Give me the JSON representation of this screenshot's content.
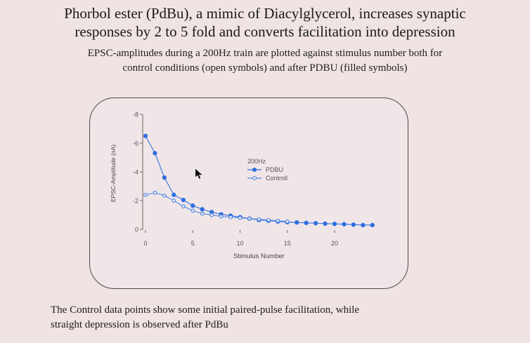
{
  "slide": {
    "title_line1": "Phorbol ester (PdBu), a mimic of Diacylglycerol, increases synaptic",
    "title_line2": "responses by 2 to 5 fold and converts facilitation into depression",
    "subtitle_line1": "EPSC-amplitudes during a 200Hz train are plotted against stimulus number both for",
    "subtitle_line2": "control conditions (open symbols) and after PDBU (filled symbols)",
    "caption_line1": "The Control data points show some initial paired-pulse facilitation, while",
    "caption_line2": "straight depression is observed after PdBu"
  },
  "chart_data": {
    "type": "scatter",
    "xlabel": "Stimulus Number",
    "ylabel": "EPSC-Amplitude (nA)",
    "xlim": [
      -1,
      24.5
    ],
    "ylim": [
      0,
      8
    ],
    "x_ticks": [
      0,
      5,
      10,
      15,
      20
    ],
    "y_ticks": [
      0,
      2,
      4,
      6,
      8
    ],
    "y_tick_labels": [
      "0",
      "-2",
      "-4",
      "-6",
      "-8"
    ],
    "legend_title": "200Hz",
    "legend_position": "upper-middle",
    "grid": false,
    "series": [
      {
        "name": "PDBU",
        "marker": "filled-circle",
        "color": "#2f6fe0",
        "x": [
          0,
          1,
          2,
          3,
          4,
          5,
          6,
          7,
          8,
          9,
          10,
          11,
          12,
          13,
          14,
          15,
          16,
          17,
          18,
          19,
          20,
          21,
          22,
          23,
          24
        ],
        "y": [
          6.5,
          5.3,
          3.6,
          2.4,
          2.05,
          1.65,
          1.4,
          1.2,
          1.05,
          0.95,
          0.85,
          0.75,
          0.65,
          0.6,
          0.55,
          0.5,
          0.48,
          0.45,
          0.43,
          0.4,
          0.38,
          0.36,
          0.33,
          0.3,
          0.3
        ]
      },
      {
        "name": "Controll",
        "marker": "open-circle",
        "color": "#4a86e8",
        "x": [
          0,
          1,
          2,
          3,
          4,
          5,
          6,
          7,
          8,
          9,
          10,
          11,
          12,
          13,
          14,
          15
        ],
        "y": [
          2.4,
          2.55,
          2.35,
          2.0,
          1.6,
          1.3,
          1.1,
          1.0,
          0.9,
          0.85,
          0.8,
          0.75,
          0.7,
          0.65,
          0.6,
          0.55
        ]
      }
    ]
  }
}
